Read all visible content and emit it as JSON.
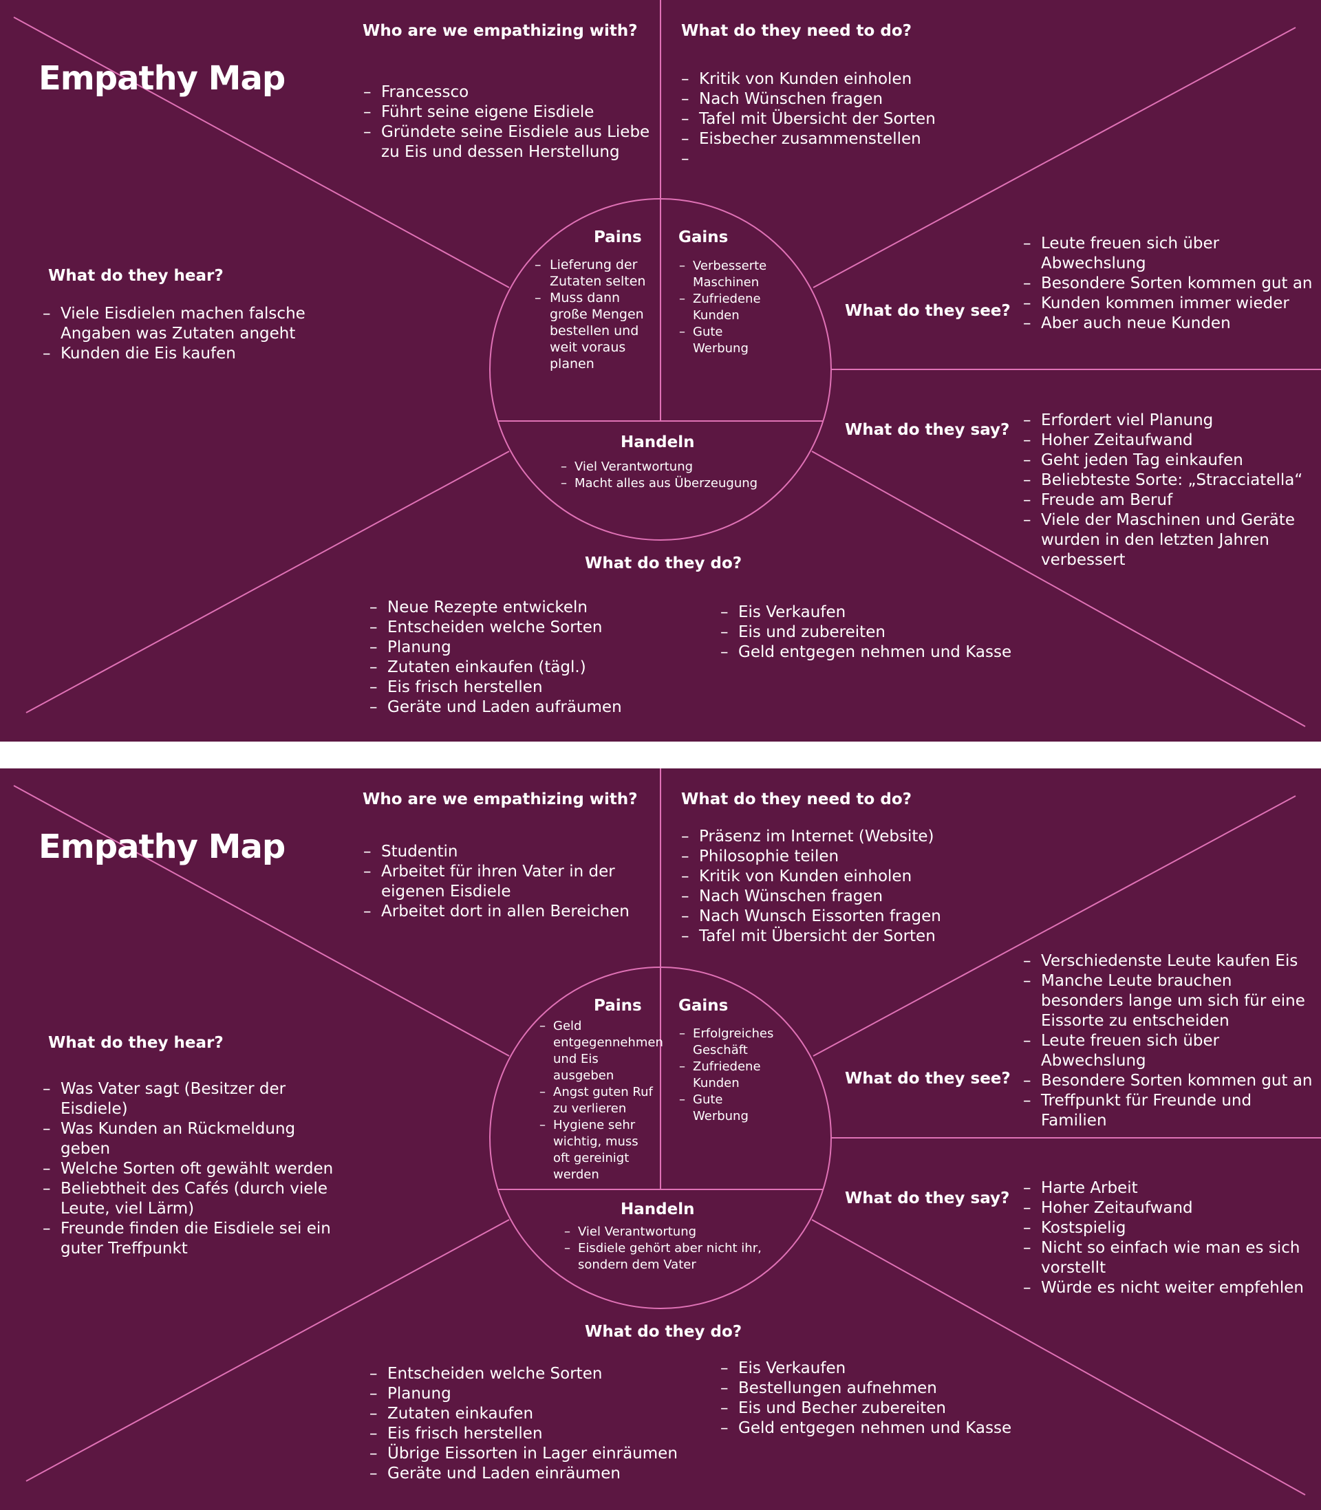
{
  "maps": [
    {
      "title": "Empathy Map",
      "who": {
        "heading": "Who are we empathizing with?",
        "items": [
          "Francessco",
          "Führt seine eigene Eisdiele",
          "Gründete seine Eisdiele aus Liebe zu Eis und dessen Herstellung"
        ]
      },
      "need": {
        "heading": "What do they need to do?",
        "items": [
          "Kritik von Kunden einholen",
          "Nach Wünschen fragen",
          "Tafel mit Übersicht der Sorten",
          "Eisbecher zusammenstellen",
          ""
        ]
      },
      "hear": {
        "heading": "What do they hear?",
        "items": [
          "Viele Eisdielen machen falsche Angaben was Zutaten angeht",
          "Kunden die Eis kaufen"
        ]
      },
      "see": {
        "heading": "What do they see?",
        "items": [
          "Leute freuen sich über Abwechslung",
          "Besondere Sorten kommen gut an",
          "Kunden kommen immer wieder",
          "Aber auch neue Kunden"
        ]
      },
      "say": {
        "heading": "What do they say?",
        "items": [
          "Erfordert viel Planung",
          "Hoher Zeitaufwand",
          "Geht jeden Tag einkaufen",
          "Beliebteste Sorte: „Stracciatella“",
          "Freude am Beruf",
          "Viele der Maschinen und Geräte wurden in den letzten Jahren verbessert"
        ]
      },
      "do": {
        "heading": "What do they do?",
        "left": [
          "Neue Rezepte entwickeln",
          "Entscheiden welche Sorten",
          "Planung",
          "Zutaten einkaufen (tägl.)",
          "Eis frisch herstellen",
          "Geräte und Laden aufräumen"
        ],
        "right": [
          "Eis Verkaufen",
          "Eis und zubereiten",
          "Geld entgegen nehmen und Kasse"
        ]
      },
      "pains": {
        "heading": "Pains",
        "items": [
          "Lieferung der Zutaten selten",
          "Muss dann große Mengen bestellen und weit voraus planen"
        ]
      },
      "gains": {
        "heading": "Gains",
        "items": [
          "Verbesserte Maschinen",
          "Zufriedene Kunden",
          "Gute Werbung"
        ]
      },
      "handeln": {
        "heading": "Handeln",
        "items": [
          "Viel Verantwortung",
          "Macht alles aus Überzeugung"
        ]
      }
    },
    {
      "title": "Empathy Map",
      "who": {
        "heading": "Who are we empathizing with?",
        "items": [
          "Studentin",
          "Arbeitet für ihren Vater in der eigenen Eisdiele",
          "Arbeitet dort in allen Bereichen"
        ]
      },
      "need": {
        "heading": "What do they need to do?",
        "items": [
          "Präsenz im Internet (Website)",
          "Philosophie teilen",
          "Kritik von Kunden einholen",
          "Nach Wünschen fragen",
          "Nach Wunsch Eissorten fragen",
          "Tafel mit Übersicht der Sorten"
        ]
      },
      "hear": {
        "heading": "What do they hear?",
        "items": [
          "Was Vater sagt (Besitzer der Eisdiele)",
          "Was Kunden an Rückmeldung geben",
          "Welche Sorten oft gewählt werden",
          "Beliebtheit des Cafés (durch viele Leute, viel Lärm)",
          "Freunde finden die Eisdiele sei ein guter Treffpunkt"
        ]
      },
      "see": {
        "heading": "What do they see?",
        "items": [
          "Verschiedenste Leute kaufen Eis",
          "Manche Leute brauchen besonders lange um sich für eine Eissorte zu entscheiden",
          "Leute freuen sich über Abwechslung",
          "Besondere Sorten kommen gut an",
          "Treffpunkt für Freunde und Familien"
        ]
      },
      "say": {
        "heading": "What do they say?",
        "items": [
          "Harte Arbeit",
          "Hoher Zeitaufwand",
          "Kostspielig",
          "Nicht so einfach wie man es sich vorstellt",
          "Würde es nicht weiter empfehlen"
        ]
      },
      "do": {
        "heading": "What do they do?",
        "left": [
          "Entscheiden welche Sorten",
          "Planung",
          "Zutaten einkaufen",
          "Eis frisch herstellen",
          "Übrige Eissorten in Lager einräumen",
          "Geräte und Laden einräumen"
        ],
        "right": [
          "Eis Verkaufen",
          "Bestellungen aufnehmen",
          "Eis und Becher zubereiten",
          "Geld entgegen nehmen und Kasse"
        ]
      },
      "pains": {
        "heading": "Pains",
        "items": [
          "Geld entgegennehmen und Eis ausgeben",
          "Angst guten Ruf zu verlieren",
          "Hygiene sehr wichtig, muss oft gereinigt werden"
        ]
      },
      "gains": {
        "heading": "Gains",
        "items": [
          "Erfolgreiches Geschäft",
          "Zufriedene Kunden",
          "Gute Werbung"
        ]
      },
      "handeln": {
        "heading": "Handeln",
        "items": [
          "Viel Verantwortung",
          "Eisdiele gehört aber nicht ihr, sondern dem Vater"
        ]
      }
    }
  ]
}
